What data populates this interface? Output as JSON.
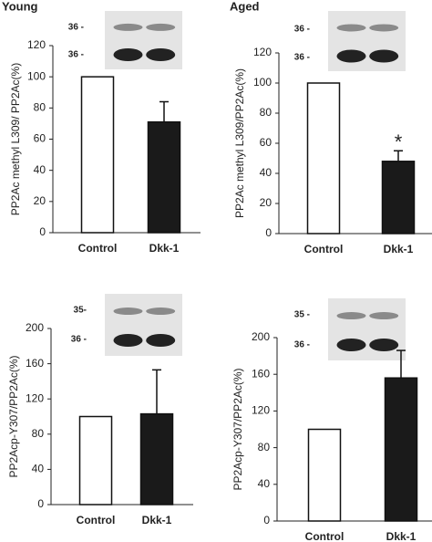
{
  "chart_data": [
    {
      "type": "bar",
      "panel_label": "Young",
      "y_label": "PP2Ac methyl L309/ PP2Ac(%)",
      "categories": [
        "Control",
        "Dkk-1"
      ],
      "values": [
        100,
        71
      ],
      "errors": [
        0,
        13
      ],
      "colors": [
        "#ffffff",
        "#1a1a1a"
      ],
      "ylim": [
        0,
        120
      ],
      "yticks": [
        0,
        20,
        40,
        60,
        80,
        100,
        120
      ],
      "blot_labels": [
        "36 -",
        "36 -"
      ]
    },
    {
      "type": "bar",
      "panel_label": "Aged",
      "y_label": "PP2Ac methyl L309/PP2Ac(%)",
      "categories": [
        "Control",
        "Dkk-1"
      ],
      "values": [
        100,
        48
      ],
      "errors": [
        0,
        7
      ],
      "colors": [
        "#ffffff",
        "#1a1a1a"
      ],
      "ylim": [
        0,
        120
      ],
      "yticks": [
        0,
        20,
        40,
        60,
        80,
        100,
        120
      ],
      "blot_labels": [
        "36 -",
        "36 -"
      ],
      "annotation": "*"
    },
    {
      "type": "bar",
      "y_label": "PP2Acp-Y307/PP2Ac(%)",
      "categories": [
        "Control",
        "Dkk-1"
      ],
      "values": [
        100,
        103
      ],
      "errors": [
        0,
        50
      ],
      "colors": [
        "#ffffff",
        "#1a1a1a"
      ],
      "ylim": [
        0,
        200
      ],
      "yticks": [
        0,
        40,
        80,
        120,
        160,
        200
      ],
      "blot_labels": [
        "35-",
        "36 -"
      ]
    },
    {
      "type": "bar",
      "y_label": "PP2Acp-Y307/PP2Ac(%)",
      "categories": [
        "Control",
        "Dkk-1"
      ],
      "values": [
        100,
        156
      ],
      "errors": [
        0,
        30
      ],
      "colors": [
        "#ffffff",
        "#1a1a1a"
      ],
      "ylim": [
        0,
        200
      ],
      "yticks": [
        0,
        40,
        80,
        120,
        160,
        200
      ],
      "blot_labels": [
        "35 -",
        "36 -"
      ]
    }
  ]
}
